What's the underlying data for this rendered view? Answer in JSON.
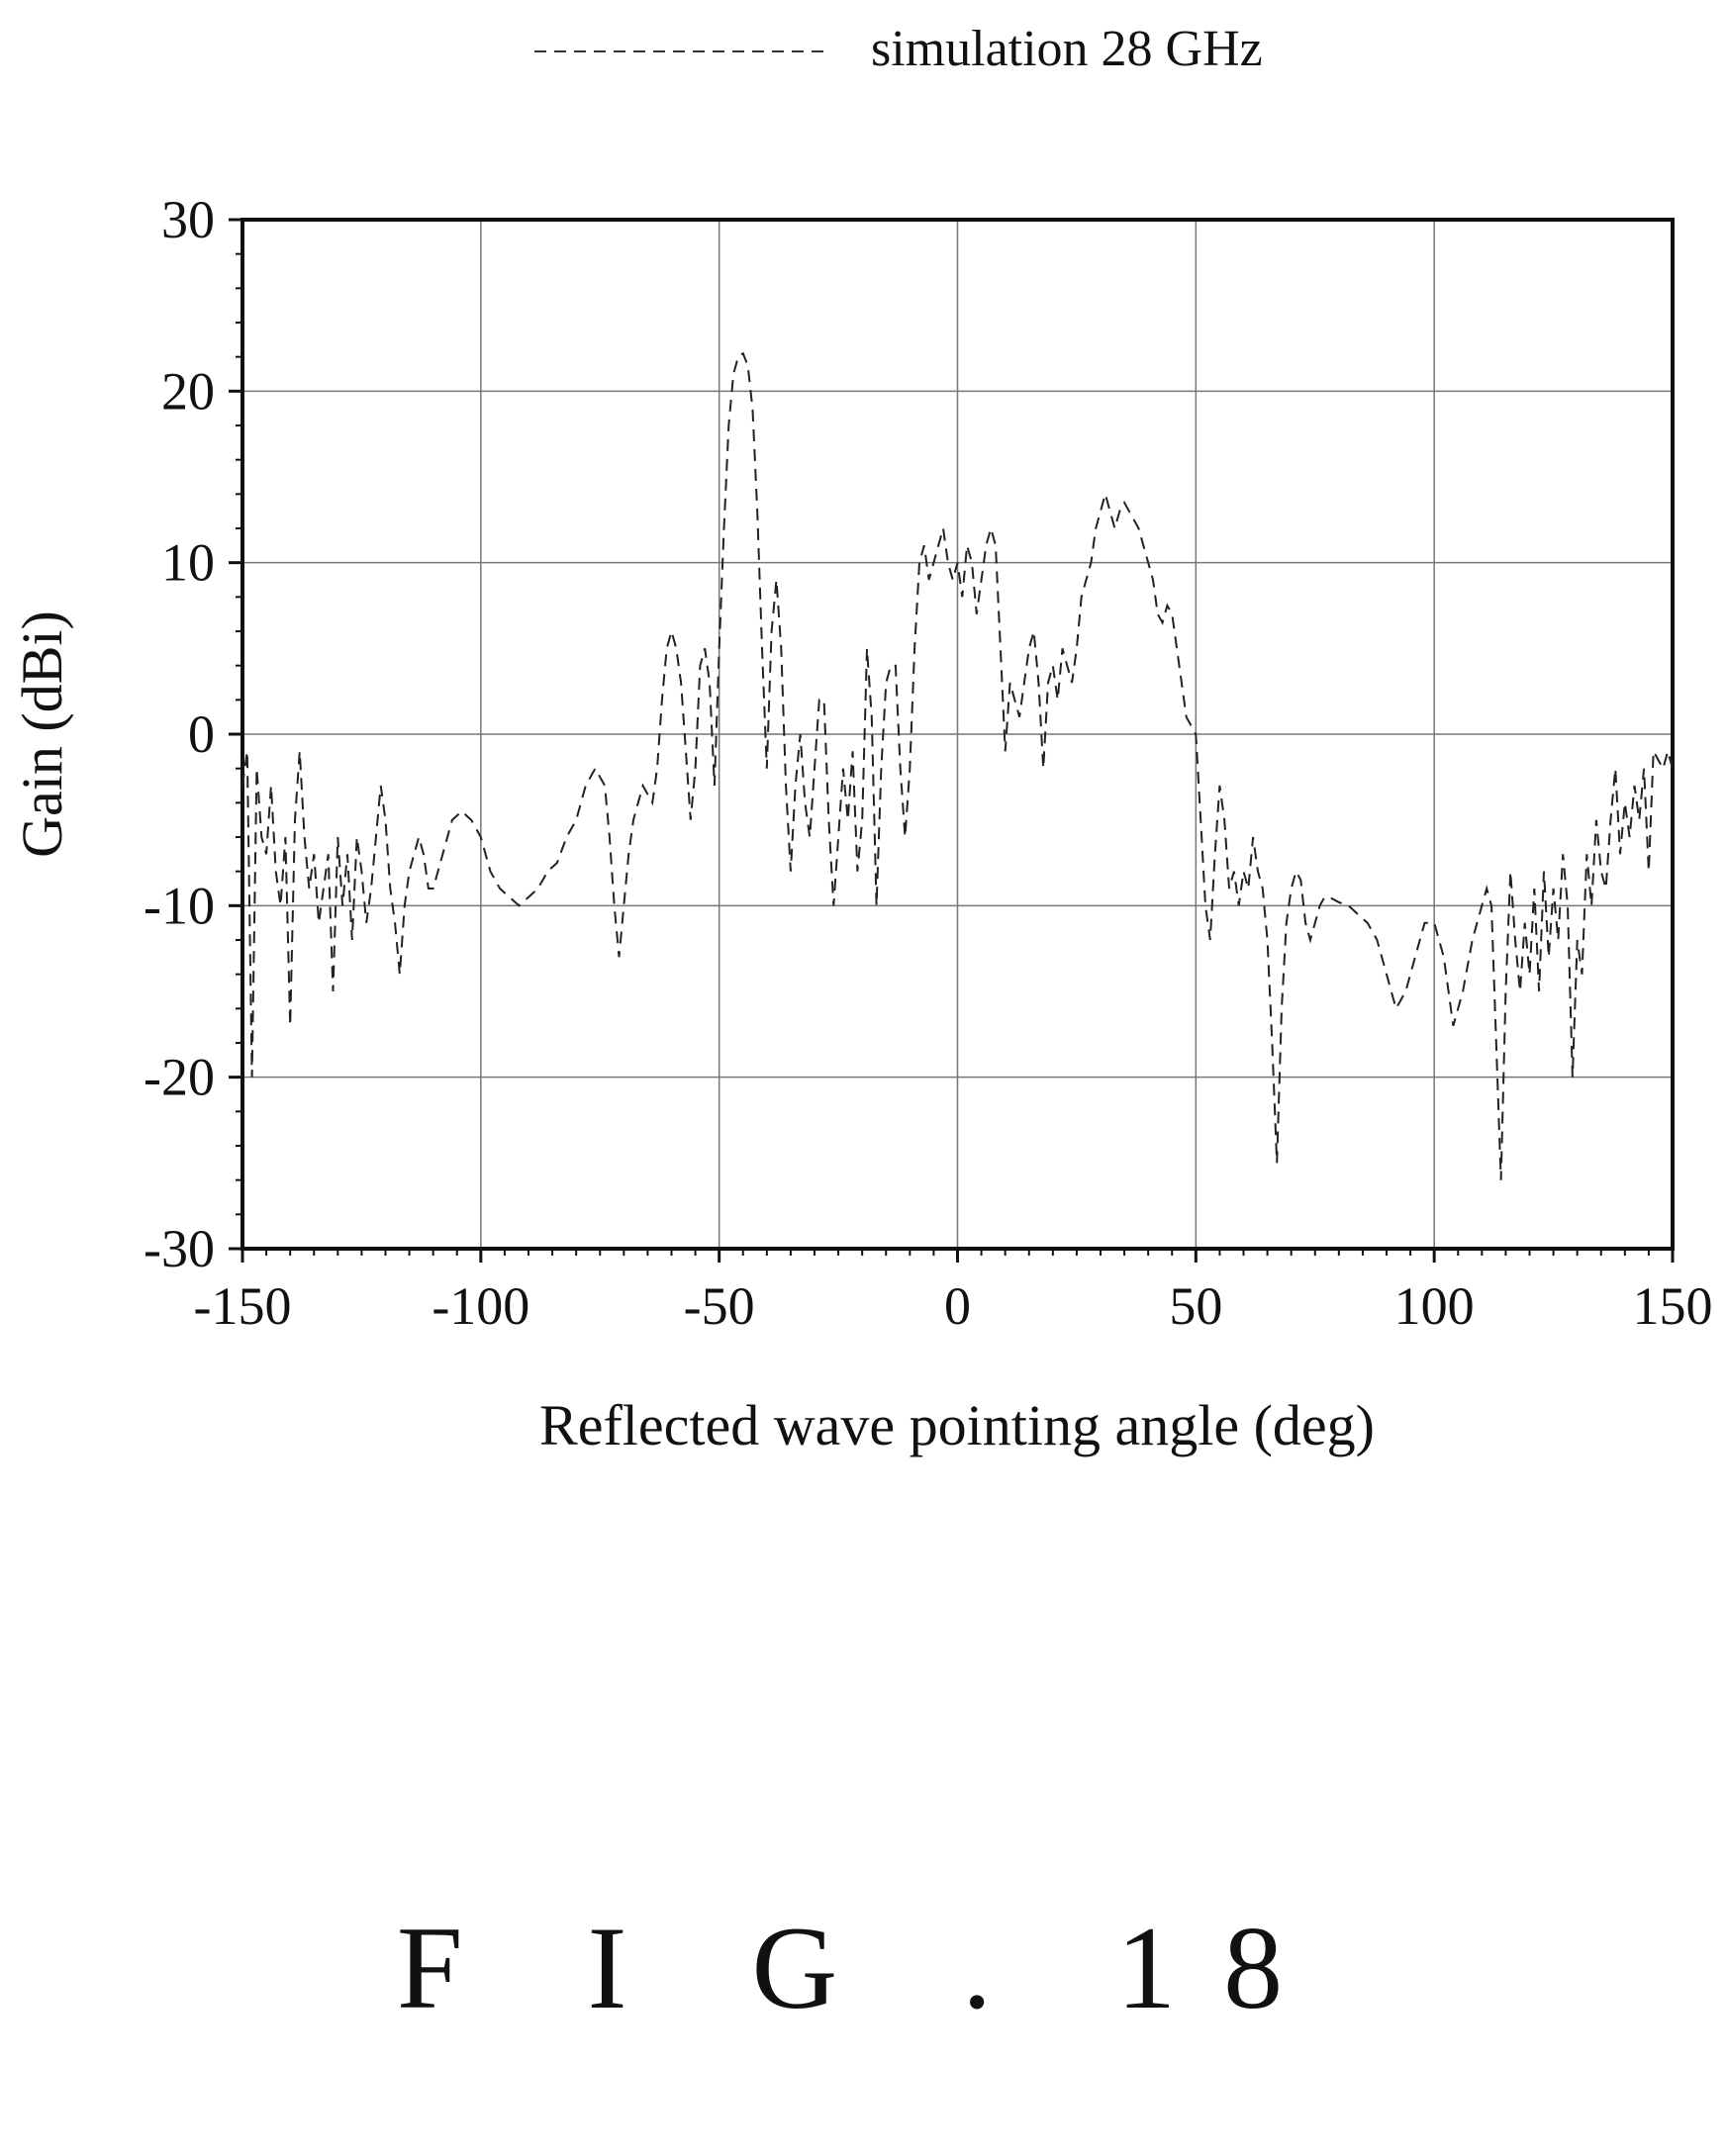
{
  "figure_label": "F I G . 18",
  "chart_data": {
    "type": "line",
    "title": "",
    "xlabel": "Reflected wave pointing angle (deg)",
    "ylabel": "Gain (dBi)",
    "xlim": [
      -150,
      150
    ],
    "ylim": [
      -30,
      30
    ],
    "xticks": [
      -150,
      -100,
      -50,
      0,
      50,
      100,
      150
    ],
    "yticks": [
      -30,
      -20,
      -10,
      0,
      10,
      20,
      30
    ],
    "grid": true,
    "legend_position": "top-center",
    "series": [
      {
        "name": "simulation 28 GHz",
        "style": "dashed",
        "color": "#222222",
        "points": [
          [
            -150,
            -3
          ],
          [
            -149,
            -1
          ],
          [
            -148,
            -20
          ],
          [
            -147,
            -2
          ],
          [
            -146,
            -6
          ],
          [
            -145,
            -7
          ],
          [
            -144,
            -3
          ],
          [
            -143,
            -8
          ],
          [
            -142,
            -10
          ],
          [
            -141,
            -6
          ],
          [
            -140,
            -17
          ],
          [
            -139,
            -5
          ],
          [
            -138,
            -1
          ],
          [
            -137,
            -6
          ],
          [
            -136,
            -9
          ],
          [
            -135,
            -7
          ],
          [
            -134,
            -11
          ],
          [
            -133,
            -9
          ],
          [
            -132,
            -7
          ],
          [
            -131,
            -15
          ],
          [
            -130,
            -6
          ],
          [
            -129,
            -10
          ],
          [
            -128,
            -7
          ],
          [
            -127,
            -12
          ],
          [
            -126,
            -6
          ],
          [
            -125,
            -8
          ],
          [
            -124,
            -11
          ],
          [
            -123,
            -9
          ],
          [
            -122,
            -6
          ],
          [
            -121,
            -3
          ],
          [
            -120,
            -5
          ],
          [
            -119,
            -9
          ],
          [
            -118,
            -11
          ],
          [
            -117,
            -14
          ],
          [
            -116,
            -10
          ],
          [
            -115,
            -8
          ],
          [
            -114,
            -7
          ],
          [
            -113,
            -6
          ],
          [
            -112,
            -7
          ],
          [
            -111,
            -9
          ],
          [
            -110,
            -9
          ],
          [
            -109,
            -8
          ],
          [
            -108,
            -7
          ],
          [
            -106,
            -5
          ],
          [
            -104,
            -4.5
          ],
          [
            -102,
            -5
          ],
          [
            -100,
            -6
          ],
          [
            -98,
            -8
          ],
          [
            -96,
            -9
          ],
          [
            -94,
            -9.5
          ],
          [
            -92,
            -10
          ],
          [
            -90,
            -9.5
          ],
          [
            -88,
            -9
          ],
          [
            -86,
            -8
          ],
          [
            -84,
            -7.5
          ],
          [
            -82,
            -6
          ],
          [
            -80,
            -5
          ],
          [
            -78,
            -3
          ],
          [
            -76,
            -2
          ],
          [
            -74,
            -3
          ],
          [
            -73,
            -6
          ],
          [
            -72,
            -10
          ],
          [
            -71,
            -13
          ],
          [
            -70,
            -10
          ],
          [
            -69,
            -7
          ],
          [
            -68,
            -5
          ],
          [
            -67,
            -4
          ],
          [
            -66,
            -3
          ],
          [
            -65,
            -3.5
          ],
          [
            -64,
            -4
          ],
          [
            -63,
            -2
          ],
          [
            -62,
            2
          ],
          [
            -61,
            5
          ],
          [
            -60,
            6
          ],
          [
            -59,
            5
          ],
          [
            -58,
            3
          ],
          [
            -57,
            -1
          ],
          [
            -56,
            -5
          ],
          [
            -55,
            -2
          ],
          [
            -54,
            4
          ],
          [
            -53,
            5
          ],
          [
            -52,
            3
          ],
          [
            -51,
            -3
          ],
          [
            -50,
            5
          ],
          [
            -49,
            12
          ],
          [
            -48,
            18
          ],
          [
            -47,
            21
          ],
          [
            -46,
            22
          ],
          [
            -45,
            22.2
          ],
          [
            -44,
            21.5
          ],
          [
            -43,
            19
          ],
          [
            -42,
            13
          ],
          [
            -41,
            5
          ],
          [
            -40,
            -2
          ],
          [
            -39,
            6
          ],
          [
            -38,
            9
          ],
          [
            -37,
            5
          ],
          [
            -36,
            -3
          ],
          [
            -35,
            -8
          ],
          [
            -34,
            -3
          ],
          [
            -33,
            0
          ],
          [
            -32,
            -4
          ],
          [
            -31,
            -6
          ],
          [
            -30,
            -2
          ],
          [
            -29,
            2
          ],
          [
            -28,
            2
          ],
          [
            -27,
            -5
          ],
          [
            -26,
            -10
          ],
          [
            -25,
            -6
          ],
          [
            -24,
            -2
          ],
          [
            -23,
            -5
          ],
          [
            -22,
            -1
          ],
          [
            -21,
            -8
          ],
          [
            -20,
            -5
          ],
          [
            -19,
            5
          ],
          [
            -18,
            1
          ],
          [
            -17,
            -10
          ],
          [
            -16,
            -2
          ],
          [
            -15,
            3
          ],
          [
            -14,
            4
          ],
          [
            -13,
            4
          ],
          [
            -12,
            -2
          ],
          [
            -11,
            -6
          ],
          [
            -10,
            -2
          ],
          [
            -9,
            5
          ],
          [
            -8,
            10
          ],
          [
            -7,
            11
          ],
          [
            -6,
            9
          ],
          [
            -5,
            10
          ],
          [
            -4,
            11
          ],
          [
            -3,
            12
          ],
          [
            -2,
            10
          ],
          [
            -1,
            9
          ],
          [
            0,
            10
          ],
          [
            1,
            8
          ],
          [
            2,
            11
          ],
          [
            3,
            10
          ],
          [
            4,
            7
          ],
          [
            5,
            9
          ],
          [
            6,
            11
          ],
          [
            7,
            12
          ],
          [
            8,
            11
          ],
          [
            9,
            5
          ],
          [
            10,
            -1
          ],
          [
            11,
            3
          ],
          [
            12,
            2
          ],
          [
            13,
            1
          ],
          [
            14,
            3
          ],
          [
            15,
            5
          ],
          [
            16,
            6
          ],
          [
            17,
            3
          ],
          [
            18,
            -2
          ],
          [
            19,
            3
          ],
          [
            20,
            4
          ],
          [
            21,
            2
          ],
          [
            22,
            5
          ],
          [
            23,
            4
          ],
          [
            24,
            3
          ],
          [
            25,
            5
          ],
          [
            26,
            8
          ],
          [
            27,
            9
          ],
          [
            28,
            10
          ],
          [
            29,
            12
          ],
          [
            30,
            13
          ],
          [
            31,
            14
          ],
          [
            32,
            13
          ],
          [
            33,
            12
          ],
          [
            34,
            13
          ],
          [
            35,
            13.5
          ],
          [
            36,
            13
          ],
          [
            37,
            12.5
          ],
          [
            38,
            12
          ],
          [
            39,
            11
          ],
          [
            40,
            10
          ],
          [
            41,
            9
          ],
          [
            42,
            7
          ],
          [
            43,
            6.5
          ],
          [
            44,
            7.5
          ],
          [
            45,
            7
          ],
          [
            46,
            5
          ],
          [
            47,
            3
          ],
          [
            48,
            1
          ],
          [
            49,
            0.5
          ],
          [
            50,
            0
          ],
          [
            51,
            -5
          ],
          [
            52,
            -10
          ],
          [
            53,
            -12
          ],
          [
            54,
            -7
          ],
          [
            55,
            -3
          ],
          [
            56,
            -5
          ],
          [
            57,
            -9
          ],
          [
            58,
            -8
          ],
          [
            59,
            -10
          ],
          [
            60,
            -8
          ],
          [
            61,
            -9
          ],
          [
            62,
            -6
          ],
          [
            63,
            -8
          ],
          [
            64,
            -9
          ],
          [
            65,
            -12
          ],
          [
            66,
            -18
          ],
          [
            67,
            -25
          ],
          [
            68,
            -16
          ],
          [
            69,
            -11
          ],
          [
            70,
            -9
          ],
          [
            71,
            -8
          ],
          [
            72,
            -8.5
          ],
          [
            73,
            -11
          ],
          [
            74,
            -12
          ],
          [
            75,
            -11
          ],
          [
            76,
            -10
          ],
          [
            77,
            -9.5
          ],
          [
            78,
            -9.5
          ],
          [
            80,
            -9.8
          ],
          [
            82,
            -10
          ],
          [
            84,
            -10.5
          ],
          [
            86,
            -11
          ],
          [
            88,
            -12
          ],
          [
            90,
            -14
          ],
          [
            92,
            -16
          ],
          [
            94,
            -15
          ],
          [
            96,
            -13
          ],
          [
            98,
            -11
          ],
          [
            100,
            -11
          ],
          [
            102,
            -13
          ],
          [
            104,
            -17
          ],
          [
            106,
            -15
          ],
          [
            108,
            -12
          ],
          [
            110,
            -10
          ],
          [
            111,
            -9
          ],
          [
            112,
            -10
          ],
          [
            113,
            -18
          ],
          [
            114,
            -26
          ],
          [
            115,
            -15
          ],
          [
            116,
            -8
          ],
          [
            117,
            -12
          ],
          [
            118,
            -15
          ],
          [
            119,
            -11
          ],
          [
            120,
            -14
          ],
          [
            121,
            -9
          ],
          [
            122,
            -15
          ],
          [
            123,
            -8
          ],
          [
            124,
            -13
          ],
          [
            125,
            -9
          ],
          [
            126,
            -12
          ],
          [
            127,
            -7
          ],
          [
            128,
            -10
          ],
          [
            129,
            -20
          ],
          [
            130,
            -12
          ],
          [
            131,
            -14
          ],
          [
            132,
            -7
          ],
          [
            133,
            -10
          ],
          [
            134,
            -5
          ],
          [
            135,
            -8
          ],
          [
            136,
            -9
          ],
          [
            137,
            -5
          ],
          [
            138,
            -2
          ],
          [
            139,
            -7
          ],
          [
            140,
            -4
          ],
          [
            141,
            -6
          ],
          [
            142,
            -3
          ],
          [
            143,
            -5
          ],
          [
            144,
            -2
          ],
          [
            145,
            -8
          ],
          [
            146,
            -1
          ],
          [
            147,
            -1.5
          ],
          [
            148,
            -2
          ],
          [
            149,
            -1
          ],
          [
            150,
            -2
          ]
        ]
      }
    ]
  }
}
